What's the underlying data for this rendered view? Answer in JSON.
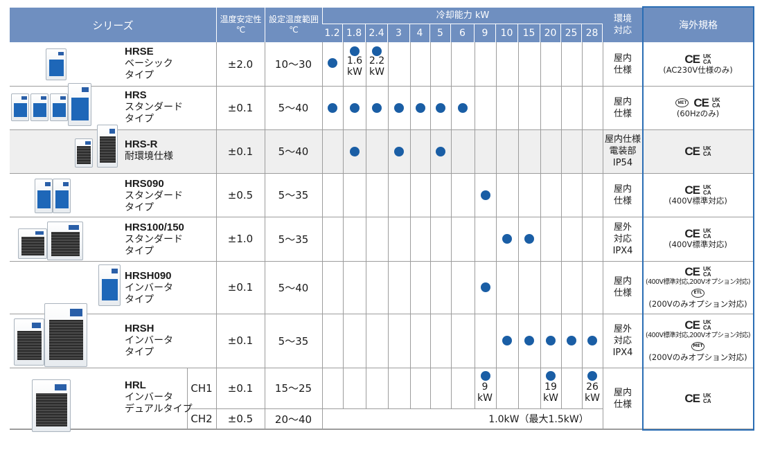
{
  "header": {
    "series": "シリーズ",
    "stability": "温度安定性\n℃",
    "range": "設定温度範囲\n℃",
    "capacity_title": "冷却能力 kW",
    "env": "環境\n対応",
    "standards": "海外規格"
  },
  "capacities": [
    "1.2",
    "1.8",
    "2.4",
    "3",
    "4",
    "5",
    "6",
    "9",
    "10",
    "15",
    "20",
    "25",
    "28"
  ],
  "rows": [
    {
      "name": "HRSE",
      "type": "ベーシック\nタイプ",
      "stability": "±2.0",
      "range": "10～30",
      "env": "屋内\n仕様",
      "marks": [
        "CE",
        "UK CA"
      ],
      "notes": [
        "(AC230V仕様のみ)"
      ]
    },
    {
      "name": "HRS",
      "type": "スタンダード\nタイプ",
      "stability": "±0.1",
      "range": "5～40",
      "env": "屋内\n仕様",
      "marks": [
        "CE",
        "UK CA",
        "MET"
      ],
      "notes": [
        "(60Hzのみ)"
      ]
    },
    {
      "name": "HRS-R",
      "type": "耐環境仕様",
      "stability": "±0.1",
      "range": "5～40",
      "env": "屋内仕様\n電装部\nIP54",
      "marks": [
        "CE",
        "UK CA"
      ],
      "notes": []
    },
    {
      "name": "HRS090",
      "type": "スタンダード\nタイプ",
      "stability": "±0.5",
      "range": "5～35",
      "env": "屋内\n仕様",
      "marks": [
        "CE",
        "UK CA"
      ],
      "notes": [
        "(400V標準対応)"
      ]
    },
    {
      "name": "HRS100/150",
      "type": "スタンダード\nタイプ",
      "stability": "±1.0",
      "range": "5～35",
      "env": "屋外\n対応\nIPX4",
      "marks": [
        "CE",
        "UK CA"
      ],
      "notes": [
        "(400V標準対応)"
      ]
    },
    {
      "name": "HRSH090",
      "type": "インバータ\nタイプ",
      "stability": "±0.1",
      "range": "5～40",
      "env": "屋内\n仕様",
      "marks": [
        "CE",
        "UK CA",
        "ETL"
      ],
      "notes": [
        "(400V標準対応,200Vオプション対応)",
        "(200Vのみオプション対応)"
      ]
    },
    {
      "name": "HRSH",
      "type": "インバータ\nタイプ",
      "stability": "±0.1",
      "range": "5～35",
      "env": "屋外\n対応\nIPX4",
      "marks": [
        "CE",
        "UK CA",
        "MET"
      ],
      "notes": [
        "(400V標準対応,200Vオプション対応)",
        "(200Vのみオプション対応)"
      ]
    },
    {
      "name": "HRL",
      "type": "インバータ\nデュアルタイプ",
      "env": "屋内\n仕様",
      "marks": [
        "CE",
        "UK CA"
      ],
      "notes": [],
      "channels": [
        {
          "ch": "CH1",
          "stability": "±0.1",
          "range": "15～25"
        },
        {
          "ch": "CH2",
          "stability": "±0.5",
          "range": "20～40",
          "capacity_text": "1.0kW（最大1.5kW）"
        }
      ]
    }
  ],
  "capacity_dots": {
    "HRSE": [
      "1.2",
      "1.8",
      "2.4"
    ],
    "HRS": [
      "1.2",
      "1.8",
      "2.4",
      "3",
      "4",
      "5",
      "6"
    ],
    "HRS-R": [
      "1.8",
      "3",
      "5"
    ],
    "HRS090": [
      "9"
    ],
    "HRS100/150": [
      "10",
      "15"
    ],
    "HRSH090": [
      "9"
    ],
    "HRSH": [
      "10",
      "15",
      "20",
      "25",
      "28"
    ],
    "HRL": [
      "9",
      "20",
      "28"
    ]
  },
  "dot_labels": {
    "hrse_18": "1.6\nkW",
    "hrse_24": "2.2\nkW",
    "hrl_9": "9\nkW",
    "hrl_20": "19\nkW",
    "hrl_28": "26\nkW"
  },
  "marks": {
    "ce": "CE",
    "uk": "UK",
    "ca": "CA",
    "met": "MET",
    "etl": "ETL"
  },
  "colors": {
    "header": "#6f8fc0",
    "dot": "#1a5ea5",
    "highlight_border": "#2a6db4",
    "shaded_row": "#efefef"
  }
}
